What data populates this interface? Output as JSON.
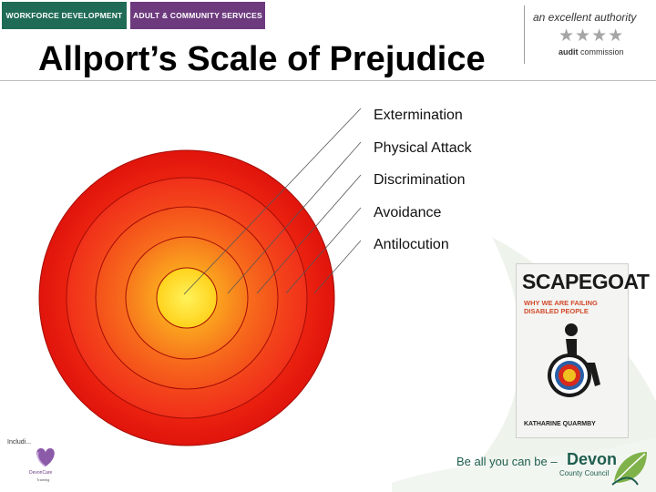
{
  "header": {
    "tab_workforce": "WORKFORCE DEVELOPMENT",
    "tab_adult": "ADULT & COMMUNITY SERVICES",
    "title": "Allport’s Scale of Prejudice",
    "authority_text": "an excellent authority",
    "authority_stars": "★★★★",
    "authority_audit_bold": "audit",
    "authority_audit_rest": " commission"
  },
  "diagram": {
    "levels": [
      "Extermination",
      "Physical Attack",
      "Discrimination",
      "Avoidance",
      "Antilocution"
    ]
  },
  "book": {
    "title": "SCAPEGOAT",
    "subtitle": "WHY WE ARE FAILING DISABLED PEOPLE",
    "author": "KATHARINE QUARMBY"
  },
  "footer": {
    "tagline": "Be all you can be –",
    "devon": "Devon",
    "council": "County Council",
    "small_label": "Includi...",
    "care_name": "DevonCare",
    "care_sub": "Training"
  },
  "colors": {
    "workforce_tab": "#1f6b55",
    "adult_tab": "#6d3a7e",
    "outer_ring": "#e8180e",
    "inner_core": "#ffe61a",
    "devon_green": "#1f5e4f"
  }
}
